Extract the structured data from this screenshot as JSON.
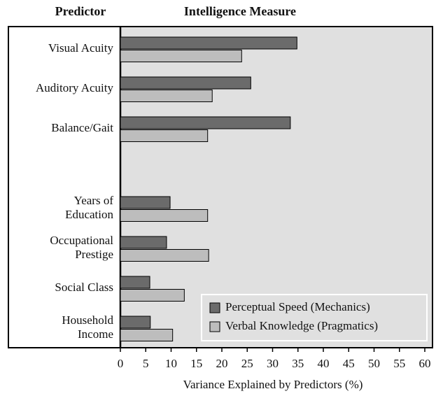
{
  "chart_data": {
    "type": "hbar",
    "headers": [
      "Predictor",
      "Intelligence Measure"
    ],
    "xlabel": "Variance Explained by Predictors (%)",
    "categories": [
      "Visual Acuity",
      "Auditory Acuity",
      "Balance/Gait",
      "Years of\nEducation",
      "Occupational\nPrestige",
      "Social Class",
      "Household\nIncome"
    ],
    "series": [
      {
        "name": "Perceptual Speed (Mechanics)",
        "color": "#6b6b6b",
        "values": [
          34.8,
          25.7,
          33.5,
          9.8,
          9.1,
          5.8,
          5.9
        ]
      },
      {
        "name": "Verbal Knowledge (Pragmatics)",
        "color": "#bdbdbd",
        "values": [
          23.9,
          18.1,
          17.2,
          17.2,
          17.4,
          12.6,
          10.3
        ]
      }
    ],
    "xlim": [
      0,
      60
    ],
    "xticks": [
      0,
      5,
      10,
      15,
      20,
      25,
      30,
      35,
      40,
      45,
      50,
      55,
      60
    ],
    "legend": "lower right"
  }
}
